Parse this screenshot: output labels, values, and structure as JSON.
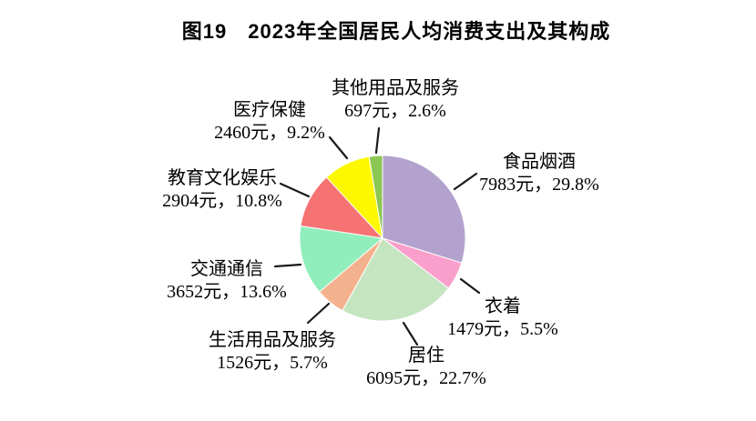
{
  "chart_data": {
    "type": "pie",
    "title": "图19　2023年全国居民人均消费支出及其构成",
    "unit": "元",
    "start_angle_deg": 0,
    "direction": "clockwise",
    "label_style": "callout",
    "legend": "none",
    "slices": [
      {
        "label": "食品烟酒",
        "value": 7983,
        "pct": 29.8,
        "value_text": "7983元，29.8%",
        "color": "#b3a2ce"
      },
      {
        "label": "衣着",
        "value": 1479,
        "pct": 5.5,
        "value_text": "1479元，5.5%",
        "color": "#fa9fcb"
      },
      {
        "label": "居住",
        "value": 6095,
        "pct": 22.7,
        "value_text": "6095元，22.7%",
        "color": "#c5e5c1"
      },
      {
        "label": "生活用品及服务",
        "value": 1526,
        "pct": 5.7,
        "value_text": "1526元，5.7%",
        "color": "#f4b18d"
      },
      {
        "label": "交通通信",
        "value": 3652,
        "pct": 13.6,
        "value_text": "3652元，13.6%",
        "color": "#90eebc"
      },
      {
        "label": "教育文化娱乐",
        "value": 2904,
        "pct": 10.8,
        "value_text": "2904元，10.8%",
        "color": "#f57373"
      },
      {
        "label": "医疗保健",
        "value": 2460,
        "pct": 9.2,
        "value_text": "2460元，9.2%",
        "color": "#fdf800"
      },
      {
        "label": "其他用品及服务",
        "value": 697,
        "pct": 2.6,
        "value_text": "697元，2.6%",
        "color": "#8cc653"
      }
    ],
    "leader_line_color": "#1a1a1a"
  }
}
